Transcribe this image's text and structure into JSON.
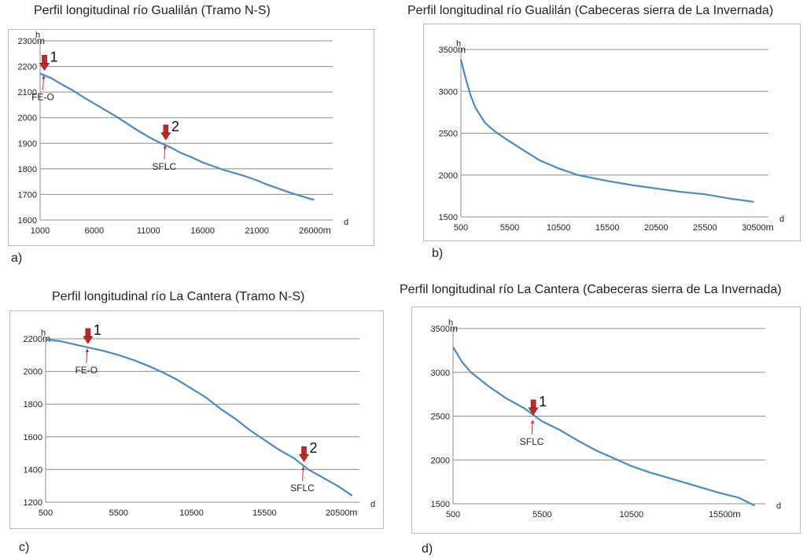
{
  "chart_data": [
    {
      "type": "line",
      "title": "Perfil longitudinal río Gualilán (Tramo N-S)",
      "panel_label": "a)",
      "ylabel": "h",
      "xlabel": "d",
      "y_unit": "m",
      "x_unit": "m",
      "xlim": [
        1000,
        28000
      ],
      "ylim": [
        1600,
        2300
      ],
      "xticks": [
        1000,
        6000,
        11000,
        16000,
        21000,
        26000
      ],
      "yticks": [
        1600,
        1700,
        1800,
        1900,
        2000,
        2100,
        2200,
        2300
      ],
      "grid": true,
      "series": [
        {
          "color": "#4a8ac4",
          "x": [
            1000,
            2000,
            3000,
            4000,
            5000,
            6000,
            7000,
            8000,
            9000,
            10000,
            11000,
            12000,
            13000,
            14000,
            15000,
            16000,
            17000,
            18000,
            19000,
            20000,
            21000,
            22000,
            23000,
            24000,
            25000,
            26000,
            26300
          ],
          "y": [
            2172,
            2155,
            2130,
            2107,
            2080,
            2055,
            2030,
            2005,
            1978,
            1950,
            1925,
            1903,
            1885,
            1862,
            1845,
            1825,
            1810,
            1795,
            1783,
            1770,
            1755,
            1738,
            1723,
            1708,
            1695,
            1682,
            1680
          ]
        }
      ],
      "markers": [
        {
          "number": "1",
          "x": 1400,
          "y": 2170,
          "label": "FE-O"
        },
        {
          "number": "2",
          "x": 12600,
          "y": 1898,
          "label": "SFLC"
        }
      ]
    },
    {
      "type": "line",
      "title": "Perfil longitudinal río Gualilán (Cabeceras sierra de La Invernada)",
      "panel_label": "b)",
      "ylabel": "h",
      "xlabel": "d",
      "y_unit": "m",
      "x_unit": "m",
      "xlim": [
        500,
        32000
      ],
      "ylim": [
        1500,
        3500
      ],
      "xticks": [
        500,
        5500,
        10500,
        15500,
        20500,
        25500,
        30500
      ],
      "yticks": [
        1500,
        2000,
        2500,
        3000,
        3500
      ],
      "grid": true,
      "series": [
        {
          "color": "#4a8ac4",
          "x": [
            500,
            1000,
            1500,
            2000,
            3000,
            4000,
            5500,
            7000,
            8500,
            10500,
            12500,
            15500,
            18000,
            20500,
            23000,
            25500,
            28000,
            30500
          ],
          "y": [
            3380,
            3150,
            2950,
            2800,
            2620,
            2520,
            2400,
            2290,
            2180,
            2080,
            2000,
            1930,
            1880,
            1840,
            1800,
            1770,
            1720,
            1680
          ]
        }
      ],
      "markers": []
    },
    {
      "type": "line",
      "title": "Perfil longitudinal río La Cantera (Tramo N-S)",
      "panel_label": "c)",
      "ylabel": "h",
      "xlabel": "d",
      "y_unit": "m",
      "x_unit": "m",
      "xlim": [
        500,
        22000
      ],
      "ylim": [
        1200,
        2200
      ],
      "xticks": [
        500,
        5500,
        10500,
        15500,
        20500
      ],
      "yticks": [
        1200,
        1400,
        1600,
        1800,
        2000,
        2200
      ],
      "grid": true,
      "series": [
        {
          "color": "#4a8ac4",
          "x": [
            500,
            1500,
            2500,
            3500,
            4500,
            5500,
            6500,
            7500,
            8500,
            9500,
            10500,
            11500,
            12500,
            13500,
            14500,
            15500,
            16500,
            17500,
            18500,
            19500,
            20500,
            21500
          ],
          "y": [
            2195,
            2185,
            2165,
            2145,
            2125,
            2100,
            2070,
            2035,
            1995,
            1950,
            1895,
            1840,
            1770,
            1710,
            1640,
            1580,
            1520,
            1470,
            1400,
            1350,
            1300,
            1240
          ]
        }
      ],
      "markers": [
        {
          "number": "1",
          "x": 3400,
          "y": 2147,
          "label": "FE-O"
        },
        {
          "number": "2",
          "x": 18200,
          "y": 1425,
          "label": "SFLC"
        }
      ]
    },
    {
      "type": "line",
      "title": "Perfil longitudinal río La Cantera (Cabeceras sierra de La Invernada)",
      "panel_label": "d)",
      "ylabel": "h",
      "xlabel": "d",
      "y_unit": "m",
      "x_unit": "m",
      "xlim": [
        500,
        18000
      ],
      "ylim": [
        1500,
        3500
      ],
      "xticks": [
        500,
        5500,
        10500,
        15500
      ],
      "yticks": [
        1500,
        2000,
        2500,
        3000,
        3500
      ],
      "grid": true,
      "series": [
        {
          "color": "#4a8ac4",
          "x": [
            500,
            1000,
            1500,
            2500,
            3500,
            4500,
            5500,
            6500,
            7500,
            8500,
            9500,
            10500,
            11500,
            12500,
            13500,
            14500,
            15500,
            16500,
            17400
          ],
          "y": [
            3290,
            3120,
            3000,
            2840,
            2700,
            2590,
            2440,
            2340,
            2220,
            2110,
            2020,
            1930,
            1860,
            1800,
            1740,
            1680,
            1620,
            1570,
            1480
          ]
        }
      ],
      "markers": [
        {
          "number": "1",
          "x": 5000,
          "y": 2470,
          "label": "SFLC"
        }
      ]
    }
  ]
}
